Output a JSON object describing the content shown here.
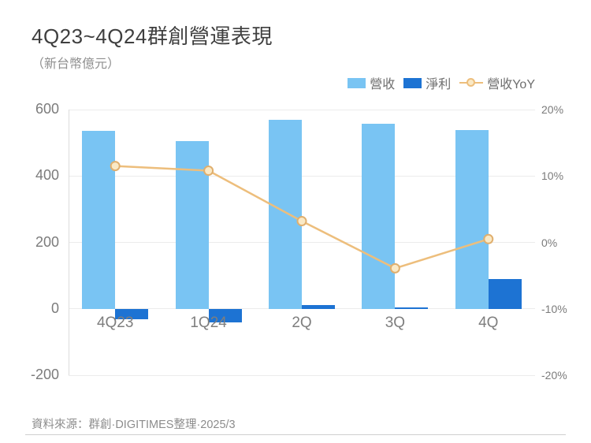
{
  "header": {
    "title": "4Q23~4Q24群創營運表現",
    "subtitle": "（新台幣億元）"
  },
  "legend": [
    {
      "label": "營收",
      "icon": "square",
      "color": "#79C4F3"
    },
    {
      "label": "淨利",
      "icon": "square",
      "color": "#1D73D3"
    },
    {
      "label": "營收YoY",
      "icon": "line-marker",
      "color": "#EDBE7C"
    }
  ],
  "footer": {
    "source": "資料來源：群創·DIGITIMES整理·2025/3"
  },
  "chart_data": {
    "type": "combo",
    "title": "4Q23~4Q24群創營運表現",
    "unit_note": "（新台幣億元）",
    "categories": [
      "4Q23",
      "1Q24",
      "2Q",
      "3Q",
      "4Q"
    ],
    "series": [
      {
        "name": "營收",
        "type": "bar",
        "axis": "left",
        "color": "#79C4F3",
        "values": [
          537,
          505,
          570,
          557,
          539
        ]
      },
      {
        "name": "淨利",
        "type": "bar",
        "axis": "left",
        "color": "#1D73D3",
        "values": [
          -32,
          -42,
          12,
          4,
          90
        ]
      },
      {
        "name": "營收YoY",
        "type": "line",
        "axis": "right",
        "color": "#EDBE7C",
        "marker_fill": "#FAE9C6",
        "marker_stroke": "#E0AF6E",
        "values_pct": [
          11.5,
          10.8,
          3.2,
          -3.9,
          0.5
        ]
      }
    ],
    "left_axis": {
      "min": -200,
      "max": 600,
      "ticks": [
        600,
        400,
        200,
        0,
        -200
      ]
    },
    "right_axis": {
      "min": -20,
      "max": 20,
      "ticks": [
        "20%",
        "10%",
        "0%",
        "-10%",
        "-20%"
      ]
    },
    "grid": true,
    "legend_position": "top-right"
  }
}
